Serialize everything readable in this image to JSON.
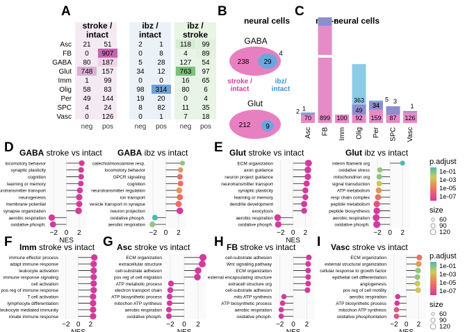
{
  "panel_labels": {
    "A": "A",
    "B": "B",
    "C": "C",
    "D": "D",
    "E": "E",
    "F": "F",
    "G": "G",
    "H": "H",
    "I": "I"
  },
  "panelA": {
    "headers": [
      {
        "line1": "stroke /",
        "line2": "intact"
      },
      {
        "line1": "ibz /",
        "line2": "intact"
      },
      {
        "line1": "ibz /",
        "line2": "stroke"
      }
    ],
    "sub": [
      "neg",
      "pos",
      "neg",
      "pos",
      "neg",
      "pos"
    ],
    "rows": [
      {
        "label": "Asc",
        "vals": [
          21,
          51,
          2,
          1,
          118,
          99
        ]
      },
      {
        "label": "FB",
        "vals": [
          0,
          907,
          0,
          8,
          4,
          89
        ]
      },
      {
        "label": "GABA",
        "vals": [
          80,
          187,
          5,
          28,
          127,
          54
        ]
      },
      {
        "label": "Glut",
        "vals": [
          748,
          157,
          34,
          12,
          763,
          97
        ]
      },
      {
        "label": "Imm",
        "vals": [
          1,
          99,
          0,
          0,
          16,
          65
        ]
      },
      {
        "label": "Olig",
        "vals": [
          58,
          83,
          98,
          314,
          80,
          6
        ]
      },
      {
        "label": "Per",
        "vals": [
          49,
          144,
          19,
          20,
          0,
          4
        ]
      },
      {
        "label": "SPC",
        "vals": [
          4,
          24,
          8,
          82,
          11,
          35
        ]
      },
      {
        "label": "Vasc",
        "vals": [
          0,
          126,
          0,
          1,
          7,
          18
        ]
      }
    ],
    "colors": {
      "bg1": "#f4eaf3",
      "bg2": "#eaf2f8",
      "bg3": "#e8f4e5",
      "hi_pink": "#c764ae",
      "hi_blue": "#6f9fd6",
      "hi_green": "#7cc07c",
      "hi_lpink": "#dcb0d2"
    }
  },
  "panelB": {
    "title": "neural cells",
    "venns": [
      {
        "name": "GABA",
        "left": 238,
        "overlap": 29,
        "right": 4
      },
      {
        "name": "Glut",
        "left": 212,
        "overlap": 9,
        "right": null
      }
    ],
    "left_label": {
      "l1": "stroke /",
      "l2": "intact"
    },
    "right_label": {
      "l1": "ibz/",
      "l2": "intact"
    },
    "colors": {
      "pink": "#e87fc0",
      "blue": "#6aa7df",
      "pinktext": "#d6409c",
      "bluetext": "#3b95d6"
    }
  },
  "chart_data": [
    {
      "type": "bar",
      "title": "non-neural cells",
      "categories": [
        "Asc",
        "FB",
        "Imm",
        "Olig",
        "Per",
        "SPC",
        "Vasc"
      ],
      "series": [
        {
          "values": [
            70,
            899,
            100,
            92,
            159,
            87,
            126
          ]
        },
        {
          "values": [
            2,
            8,
            0,
            49,
            34,
            3,
            1
          ]
        },
        {
          "values": [
            1,
            0,
            0,
            363,
            5,
            0,
            0
          ]
        }
      ],
      "labels": [
        {
          "bottom": "70",
          "mid": "2",
          "top": "1"
        },
        {
          "bottom": "899",
          "mid": "",
          "top": "8"
        },
        {
          "bottom": "100",
          "mid": "",
          "top": ""
        },
        {
          "bottom": "92",
          "mid": "49",
          "top": "363"
        },
        {
          "bottom": "159",
          "mid": "34",
          "top": "5"
        },
        {
          "bottom": "87",
          "mid": "",
          "top": "3"
        },
        {
          "bottom": "126",
          "mid": "",
          "top": "1"
        }
      ],
      "colors": {
        "pink": "#e68bc6",
        "purple": "#8c8ed0",
        "blue": "#8ccbe6"
      }
    },
    {
      "type": "scatter",
      "title": "GABA stroke vs intact",
      "title_bold": "GABA",
      "title_rest": " stroke vs intact",
      "xlabel": "NES",
      "xticks": [
        -2,
        0,
        2
      ],
      "xlim": [
        -3,
        3.2
      ],
      "terms": [
        "locomotory behavior",
        "synaptic plasticity",
        "cognition",
        "learning or memory",
        "neurotransmitter transport",
        "neurogenesis",
        "membrane potential",
        "synapse organization",
        "aerobic respiration",
        "oxidative phosph."
      ],
      "nes": [
        2.4,
        2.3,
        2.3,
        2.25,
        2.1,
        2.0,
        2.0,
        1.9,
        -2.3,
        -2.1
      ],
      "padj": [
        1e-07,
        1e-07,
        1e-07,
        1e-07,
        1e-07,
        1e-07,
        1e-07,
        1e-07,
        1e-07,
        1e-07
      ],
      "size": [
        60,
        60,
        60,
        60,
        70,
        90,
        80,
        100,
        90,
        80
      ]
    },
    {
      "type": "scatter",
      "title": "GABA ibz vs intact",
      "title_bold": "GABA",
      "title_rest": " ibz vs intact",
      "xlabel": "",
      "xticks": [
        -2,
        0,
        2
      ],
      "xlim": [
        -3,
        3.2
      ],
      "terms": [
        "catechol/monoamine resp.",
        "locomotory behavior",
        "GPCR signaling",
        "cognition",
        "neurotransmitter regulation",
        "ion transport",
        "vesicle transport in synapse",
        "neuron projection",
        "oxidative phosph.",
        "aerobic respiration"
      ],
      "nes": [
        2.6,
        2.3,
        2.2,
        2.3,
        2.1,
        2.2,
        2.0,
        2.2,
        -1.7,
        -2.1
      ],
      "padj": [
        0.01,
        0.0001,
        1e-05,
        1e-05,
        0.0001,
        1e-05,
        1e-05,
        1e-07,
        0.1,
        0.01
      ],
      "size": [
        40,
        50,
        60,
        60,
        70,
        80,
        80,
        100,
        60,
        60
      ]
    },
    {
      "type": "scatter",
      "title": "Glut stroke vs intact",
      "title_bold": "Glut",
      "title_rest": " stroke vs intact",
      "xlabel": "NES",
      "xticks": [
        -2,
        0,
        2
      ],
      "xlim": [
        -3,
        3.2
      ],
      "terms": [
        "ECM organization",
        "axon guidance",
        "neuron project guidance",
        "neurotransmitter transport",
        "synaptic plasticity",
        "learning or memory",
        "dendrite development",
        "exocytosis",
        "aerobic respiration",
        "oxidative phosph."
      ],
      "nes": [
        2.5,
        2.4,
        2.4,
        2.2,
        2.0,
        2.0,
        1.8,
        1.8,
        -2.5,
        -2.4
      ],
      "padj": [
        1e-07,
        1e-07,
        1e-07,
        1e-07,
        1e-07,
        1e-07,
        1e-07,
        1e-07,
        1e-07,
        1e-07
      ],
      "size": [
        110,
        100,
        90,
        80,
        70,
        70,
        80,
        70,
        100,
        90
      ]
    },
    {
      "type": "scatter",
      "title": "Glut ibz vs intact",
      "title_bold": "Glut",
      "title_rest": " ibz vs intact",
      "xlabel": "",
      "xticks": [
        -2,
        0,
        2
      ],
      "xlim": [
        -3,
        3.2
      ],
      "terms": [
        "interm filament org",
        "oxidative stress",
        "mitochondrion org",
        "signal transduction",
        "ATP metabolism",
        "resp chain complex",
        "peptide metabolism",
        "peptide biosynthesis",
        "aerobic respiration",
        "oxidative phosph."
      ],
      "nes": [
        2.0,
        -1.6,
        -1.7,
        -1.7,
        -1.8,
        -1.9,
        -2.1,
        -2.1,
        -2.2,
        -2.1
      ],
      "padj": [
        0.1,
        0.01,
        0.01,
        0.001,
        0.0001,
        1e-05,
        1e-06,
        1e-07,
        1e-07,
        1e-07
      ],
      "size": [
        40,
        50,
        60,
        60,
        70,
        80,
        90,
        100,
        110,
        120
      ]
    },
    {
      "type": "scatter",
      "title": "Imm stroke vs intact",
      "title_bold": "Imm",
      "title_rest": " stroke vs intact",
      "xlabel": "NES",
      "xticks": [
        -2,
        0,
        2
      ],
      "xlim": [
        -3,
        3.2
      ],
      "terms": [
        "immune effector process",
        "adapt immune response",
        "leukocyte activation",
        "immune response signaling",
        "cell activation",
        "pos reg of immune response",
        "T cell activation",
        "lymphocyte differentiation",
        "leukocyte mediated immunity",
        "innate immune response"
      ],
      "nes": [
        2.6,
        2.5,
        2.5,
        2.5,
        2.5,
        2.5,
        2.4,
        2.4,
        2.4,
        2.4
      ],
      "padj": [
        1e-07,
        1e-07,
        1e-07,
        1e-07,
        1e-07,
        1e-07,
        1e-07,
        1e-07,
        1e-07,
        1e-07
      ],
      "size": [
        90,
        90,
        90,
        90,
        90,
        90,
        90,
        90,
        90,
        90
      ]
    },
    {
      "type": "scatter",
      "title": "Asc stroke vs intact",
      "title_bold": "Asc",
      "title_rest": " stroke vs intact",
      "xlabel": "NES",
      "xticks": [
        -2,
        0,
        2
      ],
      "xlim": [
        -3,
        3.2
      ],
      "terms": [
        "ECM organization",
        "extracellular structure",
        "cell-substrate adhesion",
        "pos reg of cell migration",
        "ATP metabolic process",
        "electron transport chain",
        "ATP biosynthetic process",
        "mitochon ATP synthesis",
        "aerobic respiration",
        "oxidative phosph."
      ],
      "nes": [
        2.7,
        2.6,
        2.0,
        1.9,
        -1.9,
        -2.0,
        -2.1,
        -2.1,
        -2.2,
        -2.2
      ],
      "padj": [
        1e-07,
        1e-07,
        1e-07,
        1e-07,
        1e-07,
        1e-07,
        1e-07,
        1e-07,
        1e-07,
        1e-07
      ],
      "size": [
        120,
        110,
        100,
        100,
        70,
        70,
        60,
        60,
        60,
        60
      ]
    },
    {
      "type": "scatter",
      "title": "FB stroke vs intact",
      "title_bold": "FB",
      "title_rest": " stroke vs intact",
      "xlabel": "NES",
      "xticks": [
        -2,
        0,
        2
      ],
      "xlim": [
        -3,
        3.2
      ],
      "terms": [
        "cell-substrate adhesion",
        "Wnt signaling pathway",
        "ECM organization",
        "external encapsulating structure",
        "extracell structure org",
        "cell-substrate adhesion",
        "mito ATP synthesis",
        "ATP biosynthetic process",
        "aerobic respiration",
        "oxidative phosph."
      ],
      "nes": [
        2.3,
        2.2,
        2.2,
        2.2,
        2.2,
        2.1,
        -1.4,
        -1.6,
        -1.8,
        -1.8
      ],
      "padj": [
        1e-07,
        1e-07,
        1e-07,
        1e-07,
        1e-07,
        1e-07,
        1e-07,
        1e-07,
        1e-07,
        1e-07
      ],
      "size": [
        60,
        60,
        60,
        60,
        60,
        60,
        50,
        50,
        50,
        50
      ]
    },
    {
      "type": "scatter",
      "title": "Vasc stroke vs intact",
      "title_bold": "Vasc",
      "title_rest": " stroke vs intact",
      "xlabel": "NES",
      "xticks": [
        -2,
        0,
        2
      ],
      "xlim": [
        -3,
        3.2
      ],
      "terms": [
        "ECM organization",
        "external structural organization",
        "cellular response to growth factor",
        "epithelial cell differentiation",
        "angiogenesis",
        "pos reg of cell motility",
        "aerobic respiration",
        "ATP biosynthetic process",
        "mitochon ATP synthesis",
        "oxidative phosphorilation"
      ],
      "nes": [
        2.1,
        2.0,
        1.9,
        1.8,
        1.8,
        1.9,
        -1.4,
        -1.5,
        -1.6,
        -1.6
      ],
      "padj": [
        1e-05,
        0.0001,
        0.01,
        0.01,
        0.001,
        0.001,
        1e-07,
        1e-07,
        1e-06,
        1e-06
      ],
      "size": [
        60,
        60,
        60,
        60,
        60,
        60,
        50,
        50,
        50,
        50
      ]
    }
  ],
  "legend": {
    "padj_title": "p.adjust",
    "padj_ticks": [
      "1e-01",
      "1e-03",
      "1e-05",
      "1e-07"
    ],
    "size_title": "size",
    "size_ticks": [
      "60",
      "90",
      "120"
    ]
  }
}
